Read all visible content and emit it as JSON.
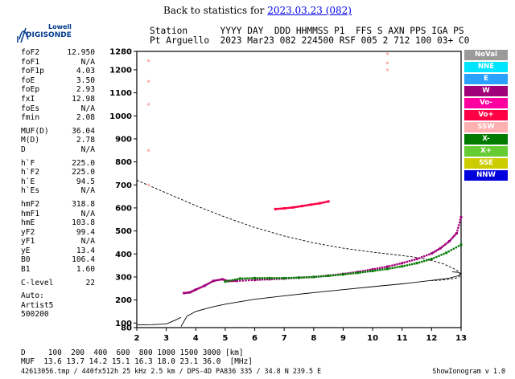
{
  "back_link": {
    "prefix": "Back to statistics for ",
    "link_text": "2023.03.23 (082)"
  },
  "logo": {
    "line1": "Lowell",
    "line2": "DIGISONDE"
  },
  "header": {
    "line1": "Station      YYYY DAY  DDD HHMMSS P1  FFS S AXN PPS IGA PS",
    "line2": "Pt Arguello  2023 Mar23 082 224500 RSF 005 2 712 100 03+ C0"
  },
  "params": [
    {
      "k": "foF2",
      "v": "12.950"
    },
    {
      "k": "foF1",
      "v": "N/A"
    },
    {
      "k": "foF1p",
      "v": "4.03"
    },
    {
      "k": "foE",
      "v": "3.50"
    },
    {
      "k": "foEp",
      "v": "2.93"
    },
    {
      "k": "fxI",
      "v": "12.98"
    },
    {
      "k": "foEs",
      "v": "N/A"
    },
    {
      "k": "fmin",
      "v": "2.08"
    },
    {
      "gap": true
    },
    {
      "k": "MUF(D)",
      "v": "36.04"
    },
    {
      "k": "M(D)",
      "v": "2.78"
    },
    {
      "k": "D",
      "v": "N/A"
    },
    {
      "gap": true
    },
    {
      "k": "h`F",
      "v": "225.0"
    },
    {
      "k": "h`F2",
      "v": "225.0"
    },
    {
      "k": "h`E",
      "v": "94.5"
    },
    {
      "k": "h`Es",
      "v": "N/A"
    },
    {
      "gap": true
    },
    {
      "k": "hmF2",
      "v": "318.8"
    },
    {
      "k": "hmF1",
      "v": "N/A"
    },
    {
      "k": "hmE",
      "v": "103.8"
    },
    {
      "k": "yF2",
      "v": "99.4"
    },
    {
      "k": "yF1",
      "v": "N/A"
    },
    {
      "k": "yE",
      "v": "13.4"
    },
    {
      "k": "B0",
      "v": "106.4"
    },
    {
      "k": "B1",
      "v": "1.60"
    },
    {
      "gap": true
    },
    {
      "k": "C-level",
      "v": "22"
    },
    {
      "gap": true
    }
  ],
  "autoscaling": [
    "Auto:",
    "Artist5",
    "500200"
  ],
  "legend": [
    {
      "label": "NoVal",
      "bg": "#9a9a9a",
      "fg": "#ffffff"
    },
    {
      "label": "NNE",
      "bg": "#00e5ff",
      "fg": "#ffffff"
    },
    {
      "label": "E",
      "bg": "#2aa0ff",
      "fg": "#ffffff"
    },
    {
      "label": "W",
      "bg": "#a0007a",
      "fg": "#ffffff"
    },
    {
      "label": "Vo-",
      "bg": "#ff00a0",
      "fg": "#ffffff"
    },
    {
      "label": "Vo+",
      "bg": "#ff0044",
      "fg": "#ffffff"
    },
    {
      "label": "SSW",
      "bg": "#ffb0b0",
      "fg": "#ffffff"
    },
    {
      "label": "X-",
      "bg": "#007a00",
      "fg": "#ffffff"
    },
    {
      "label": "X+",
      "bg": "#66cc33",
      "fg": "#ffffff"
    },
    {
      "label": "SSE",
      "bg": "#cccc00",
      "fg": "#ffffff"
    },
    {
      "label": "NNW",
      "bg": "#0000dd",
      "fg": "#ffffff"
    }
  ],
  "bottom": {
    "d_line": "D     100  200  400  600  800 1000 1500 3000 [km]",
    "muf_line": "MUF  13.6 13.7 14.2 15.1 16.3 18.0 23.1 36.0  [MHz]"
  },
  "footer": {
    "left": "42613056.tmp / 440fx512h 25 kHz 2.5 km / DPS-4D PA836 335 / 34.8 N 239.5 E",
    "right": "ShowIonogram v 1.0"
  },
  "chart_data": {
    "type": "scatter",
    "xlim": [
      2,
      13
    ],
    "ylim": [
      80,
      1280
    ],
    "x_ticks": [
      2,
      3,
      4,
      5,
      6,
      7,
      8,
      9,
      10,
      11,
      12,
      13
    ],
    "y_ticks": [
      80,
      100,
      200,
      300,
      400,
      500,
      600,
      700,
      800,
      900,
      1000,
      1100,
      1200,
      1280
    ],
    "xlabel": "",
    "ylabel": "",
    "grid": false,
    "legend_position": "right",
    "series": [
      {
        "color": "#a0007a",
        "x": [
          3.6,
          3.8,
          4.0,
          4.3,
          4.6,
          4.9,
          5.1,
          5.4,
          6.0,
          6.5,
          7.0,
          7.5,
          8.0,
          8.5,
          9.0,
          9.5,
          10.0,
          10.5,
          11.0,
          11.5,
          12.0,
          12.3,
          12.6,
          12.85,
          13.0
        ],
        "y": [
          230,
          233,
          245,
          262,
          283,
          290,
          282,
          283,
          287,
          290,
          293,
          297,
          300,
          306,
          313,
          322,
          333,
          345,
          360,
          378,
          402,
          425,
          455,
          490,
          560
        ]
      },
      {
        "color": "#007a00",
        "x": [
          5.0,
          5.5,
          6.0,
          6.5,
          7.0,
          7.5,
          8.0,
          8.5,
          9.0,
          9.5,
          10.0,
          10.5,
          11.0,
          11.5,
          12.0,
          12.5,
          13.0
        ],
        "y": [
          280,
          293,
          295,
          295,
          295,
          297,
          300,
          305,
          311,
          318,
          326,
          335,
          346,
          360,
          378,
          405,
          440
        ]
      },
      {
        "color": "#ff0044",
        "x": [
          6.7,
          7.0,
          7.3,
          7.6,
          7.9,
          8.2,
          8.5
        ],
        "y": [
          595,
          598,
          602,
          608,
          614,
          620,
          628
        ]
      },
      {
        "color": "#ffb0b0",
        "x": [
          2.4,
          2.4,
          2.4,
          2.4,
          2.4,
          10.5,
          10.5,
          10.5
        ],
        "y": [
          1240,
          1150,
          1050,
          850,
          700,
          1270,
          1230,
          1200
        ]
      }
    ],
    "curves": [
      {
        "name": "",
        "style": "dashed",
        "x": [
          2.0,
          3.0,
          4.0,
          5.0,
          6.0,
          7.0,
          8.0,
          9.0,
          10.0,
          11.0,
          11.5,
          12.0,
          12.4,
          12.7,
          12.9,
          13.0,
          12.9,
          12.6,
          12.3,
          12.0
        ],
        "y": [
          720,
          665,
          610,
          560,
          515,
          478,
          448,
          425,
          408,
          393,
          385,
          372,
          357,
          340,
          325,
          310,
          297,
          290,
          286,
          284
        ]
      },
      {
        "name": "",
        "style": "solid",
        "x": [
          3.5,
          3.7,
          4.0,
          4.5,
          5.0,
          6.0,
          7.0,
          8.0,
          9.0,
          10.0,
          11.0,
          12.0,
          12.6,
          12.9,
          13.0,
          12.9,
          12.7
        ],
        "y": [
          85,
          130,
          150,
          168,
          182,
          203,
          218,
          232,
          245,
          258,
          270,
          285,
          295,
          305,
          315,
          320,
          322
        ]
      },
      {
        "name": "",
        "style": "solid",
        "x": [
          2.0,
          2.5,
          3.0,
          3.3,
          3.5
        ],
        "y": [
          92,
          93,
          96,
          112,
          125
        ]
      }
    ]
  }
}
